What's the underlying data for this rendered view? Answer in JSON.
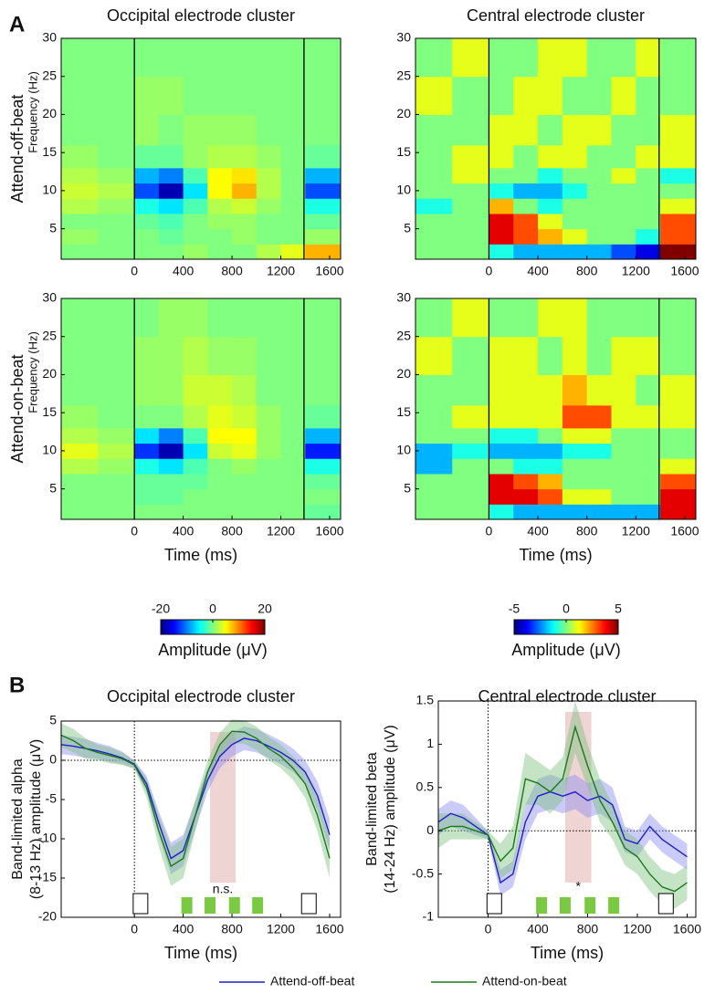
{
  "panel_labels": [
    "A",
    "B"
  ],
  "chart_data": [
    {
      "type": "heatmap",
      "title": "Occipital electrode cluster",
      "row_label": "Attend-off-beat",
      "y_label": "Frequency (Hz)",
      "x_edges": [
        -600,
        -300,
        0,
        200,
        400,
        600,
        800,
        1000,
        1200,
        1400,
        1690
      ],
      "y_edges": [
        1,
        3,
        5,
        7,
        9,
        11,
        13,
        16,
        20,
        25,
        30
      ],
      "values": [
        [
          0,
          0,
          0,
          0,
          1,
          0,
          0,
          2,
          4,
          8
        ],
        [
          1,
          0,
          0,
          -1,
          0,
          0,
          1,
          0,
          0,
          1
        ],
        [
          0,
          0,
          -1,
          -2,
          0,
          1,
          1,
          0,
          0,
          -1
        ],
        [
          2,
          1,
          -4,
          -6,
          -2,
          2,
          3,
          1,
          0,
          -4
        ],
        [
          3,
          2,
          -12,
          -18,
          -6,
          5,
          8,
          2,
          0,
          -12
        ],
        [
          2,
          1,
          -8,
          -10,
          -2,
          5,
          6,
          2,
          0,
          -8
        ],
        [
          1,
          0,
          -1,
          -1,
          1,
          2,
          2,
          1,
          0,
          -1
        ],
        [
          0,
          0,
          1,
          0,
          1,
          1,
          1,
          0,
          0,
          0
        ],
        [
          0,
          0,
          1,
          1,
          0,
          0,
          0,
          0,
          0,
          0
        ],
        [
          0,
          0,
          0,
          0,
          0,
          0,
          0,
          0,
          0,
          0
        ]
      ],
      "zlim": [
        -20,
        20
      ],
      "xlim": [
        -600,
        1690
      ],
      "ylim": [
        1,
        30
      ],
      "xticks": [
        0,
        400,
        800,
        1200,
        1600
      ],
      "yticks": [
        5,
        10,
        15,
        20,
        25,
        30
      ],
      "event_lines": [
        0,
        1390
      ]
    },
    {
      "type": "heatmap",
      "title": "Central electrode cluster",
      "x_edges": [
        -600,
        -300,
        0,
        200,
        400,
        600,
        800,
        1000,
        1200,
        1400,
        1690
      ],
      "y_edges": [
        1,
        3,
        5,
        7,
        9,
        11,
        13,
        16,
        20,
        25,
        30
      ],
      "values": [
        [
          0,
          0,
          -1,
          -2,
          -2,
          -2,
          -2,
          -3,
          -4,
          5
        ],
        [
          0,
          0,
          4,
          3,
          2,
          1,
          0,
          0,
          -1,
          3
        ],
        [
          0,
          0,
          4,
          3,
          1,
          0,
          0,
          0,
          0,
          3
        ],
        [
          -1,
          0,
          2,
          0,
          -1,
          0,
          0,
          0,
          0,
          1
        ],
        [
          0,
          0,
          -1,
          -2,
          -2,
          -1,
          0,
          0,
          0,
          0
        ],
        [
          0,
          1,
          0,
          0,
          -1,
          0,
          0,
          1,
          0,
          -1
        ],
        [
          0,
          1,
          1,
          0,
          1,
          1,
          0,
          0,
          1,
          1
        ],
        [
          0,
          0,
          1,
          1,
          0,
          1,
          1,
          0,
          0,
          1
        ],
        [
          1,
          0,
          0,
          1,
          1,
          0,
          0,
          1,
          0,
          0
        ],
        [
          0,
          1,
          0,
          0,
          1,
          1,
          0,
          0,
          1,
          0
        ]
      ],
      "zlim": [
        -5,
        5
      ],
      "xlim": [
        -600,
        1690
      ],
      "ylim": [
        1,
        30
      ],
      "xticks": [
        0,
        400,
        800,
        1200,
        1600
      ],
      "yticks": [
        5,
        10,
        15,
        20,
        25,
        30
      ],
      "event_lines": [
        0,
        1390
      ]
    },
    {
      "type": "heatmap",
      "row_label": "Attend-on-beat",
      "y_label": "Frequency (Hz)",
      "x_label": "Time (ms)",
      "x_edges": [
        -600,
        -300,
        0,
        200,
        400,
        600,
        800,
        1000,
        1200,
        1400,
        1690
      ],
      "y_edges": [
        1,
        3,
        5,
        7,
        9,
        11,
        13,
        16,
        20,
        25,
        30
      ],
      "values": [
        [
          0,
          0,
          0,
          0,
          0,
          0,
          0,
          0,
          0,
          -1
        ],
        [
          0,
          0,
          -1,
          -1,
          0,
          0,
          0,
          0,
          0,
          0
        ],
        [
          0,
          0,
          -1,
          -1,
          -1,
          0,
          0,
          0,
          0,
          -1
        ],
        [
          2,
          1,
          -4,
          -6,
          -2,
          0,
          1,
          0,
          0,
          -4
        ],
        [
          4,
          2,
          -13,
          -18,
          -6,
          3,
          4,
          1,
          0,
          -14
        ],
        [
          2,
          1,
          -6,
          -10,
          -2,
          5,
          5,
          1,
          0,
          -8
        ],
        [
          1,
          0,
          0,
          0,
          2,
          4,
          3,
          1,
          0,
          -1
        ],
        [
          0,
          0,
          1,
          1,
          3,
          3,
          2,
          0,
          0,
          0
        ],
        [
          0,
          0,
          1,
          1,
          2,
          1,
          1,
          0,
          0,
          0
        ],
        [
          0,
          0,
          0,
          1,
          1,
          0,
          0,
          0,
          0,
          0
        ]
      ],
      "zlim": [
        -20,
        20
      ],
      "colorbar": {
        "ticks": [
          -20,
          0,
          20
        ],
        "label": "Amplitude (μV)"
      },
      "xlim": [
        -600,
        1690
      ],
      "ylim": [
        1,
        30
      ],
      "xticks": [
        0,
        400,
        800,
        1200,
        1600
      ],
      "yticks": [
        5,
        10,
        15,
        20,
        25,
        30
      ],
      "event_lines": [
        0,
        1390
      ]
    },
    {
      "type": "heatmap",
      "x_label": "Time (ms)",
      "x_edges": [
        -600,
        -300,
        0,
        200,
        400,
        600,
        800,
        1000,
        1200,
        1400,
        1690
      ],
      "y_edges": [
        1,
        3,
        5,
        7,
        9,
        11,
        13,
        16,
        20,
        25,
        30
      ],
      "values": [
        [
          0,
          0,
          -1,
          -2,
          -2,
          -2,
          -2,
          -2,
          -2,
          4
        ],
        [
          0,
          0,
          4,
          4,
          3,
          1,
          1,
          0,
          0,
          4
        ],
        [
          0,
          0,
          4,
          3,
          2,
          0,
          0,
          0,
          0,
          3
        ],
        [
          -2,
          0,
          0,
          -1,
          -1,
          0,
          0,
          0,
          0,
          1
        ],
        [
          -2,
          -1,
          -2,
          -2,
          -2,
          -1,
          -1,
          0,
          0,
          0
        ],
        [
          0,
          0,
          -1,
          -1,
          0,
          1,
          1,
          0,
          0,
          0
        ],
        [
          0,
          1,
          1,
          1,
          1,
          3,
          3,
          1,
          1,
          1
        ],
        [
          0,
          0,
          1,
          1,
          1,
          2,
          1,
          1,
          0,
          1
        ],
        [
          1,
          0,
          1,
          1,
          0,
          1,
          0,
          1,
          1,
          0
        ],
        [
          0,
          1,
          0,
          0,
          1,
          1,
          0,
          0,
          0,
          0
        ]
      ],
      "zlim": [
        -5,
        5
      ],
      "colorbar": {
        "ticks": [
          -5,
          0,
          5
        ],
        "label": "Amplitude (μV)"
      },
      "xlim": [
        -600,
        1690
      ],
      "ylim": [
        1,
        30
      ],
      "xticks": [
        0,
        400,
        800,
        1200,
        1600
      ],
      "yticks": [
        5,
        10,
        15,
        20,
        25,
        30
      ],
      "event_lines": [
        0,
        1390
      ]
    },
    {
      "type": "line",
      "title": "Occipital electrode cluster",
      "y_label": [
        "Band-limited alpha",
        "(8-13 Hz) amplitude (μV)"
      ],
      "x_label": "Time (ms)",
      "x": [
        -600,
        -500,
        -400,
        -300,
        -200,
        -100,
        0,
        100,
        200,
        300,
        400,
        500,
        600,
        700,
        800,
        900,
        1000,
        1100,
        1200,
        1300,
        1400,
        1500,
        1600
      ],
      "series": [
        {
          "name": "Attend-off-beat",
          "color": "#1f1fc8",
          "band_color": "#8c8cf0",
          "values": [
            2,
            1.8,
            1.5,
            1.2,
            0.8,
            0.3,
            -0.5,
            -3,
            -8,
            -12.5,
            -11.5,
            -7,
            -2.5,
            0.5,
            2,
            2.8,
            2.5,
            1.8,
            1,
            0,
            -1.5,
            -4.5,
            -9.5
          ],
          "errors": [
            1.2,
            1.2,
            1.2,
            1,
            1,
            0.8,
            0.5,
            1,
            1.5,
            2,
            2,
            1.8,
            1.5,
            1.5,
            1.5,
            1.5,
            1.5,
            1.5,
            1.5,
            1.5,
            1.5,
            1.8,
            2
          ]
        },
        {
          "name": "Attend-on-beat",
          "color": "#1a7a1a",
          "band_color": "#7fc07f",
          "values": [
            3.2,
            2.5,
            1.5,
            1,
            0.6,
            0.2,
            -0.6,
            -3.5,
            -9,
            -13.5,
            -12.5,
            -7,
            -1.5,
            2,
            3.7,
            3.6,
            2.8,
            1.5,
            0.5,
            -1,
            -3,
            -7,
            -12.5
          ],
          "errors": [
            1.5,
            1.5,
            1.3,
            1,
            1,
            0.8,
            0.5,
            1.2,
            2,
            2.5,
            2.5,
            2,
            1.5,
            1.5,
            1.5,
            1.5,
            1.5,
            1.5,
            1.5,
            1.5,
            1.8,
            2,
            2.5
          ]
        }
      ],
      "xlim": [
        -600,
        1690
      ],
      "ylim": [
        -20,
        5
      ],
      "xticks": [
        0,
        400,
        800,
        1200,
        1600
      ],
      "yticks": [
        5,
        0,
        -5,
        -10,
        -15,
        -20
      ],
      "highlight": [
        620,
        830
      ],
      "annotation": "n.s.",
      "annotation_y": -16.5,
      "cue_markers": [
        50,
        1430
      ],
      "tap_markers": [
        430,
        620,
        820,
        1010
      ]
    },
    {
      "type": "line",
      "title": "Central electrode cluster",
      "y_label": [
        "Band-limited beta",
        "(14-24 Hz) amplitude (μV)"
      ],
      "x_label": "Time (ms)",
      "x": [
        -400,
        -300,
        -200,
        -100,
        0,
        100,
        200,
        300,
        400,
        500,
        600,
        700,
        800,
        900,
        1000,
        1100,
        1200,
        1300,
        1400,
        1500,
        1600
      ],
      "series": [
        {
          "name": "Attend-off-beat",
          "color": "#1f1fc8",
          "band_color": "#8c8cf0",
          "values": [
            0.1,
            0.2,
            0.15,
            0.05,
            -0.05,
            -0.6,
            -0.5,
            0.1,
            0.4,
            0.45,
            0.4,
            0.45,
            0.35,
            0.4,
            0.3,
            -0.1,
            -0.15,
            0.05,
            -0.1,
            -0.2,
            -0.3
          ],
          "errors": [
            0.15,
            0.15,
            0.15,
            0.1,
            0.05,
            0.15,
            0.15,
            0.2,
            0.2,
            0.2,
            0.2,
            0.2,
            0.2,
            0.2,
            0.2,
            0.15,
            0.15,
            0.15,
            0.15,
            0.15,
            0.15
          ]
        },
        {
          "name": "Attend-on-beat",
          "color": "#1a7a1a",
          "band_color": "#7fc07f",
          "values": [
            0,
            0.05,
            0.05,
            0,
            -0.05,
            -0.35,
            -0.2,
            0.6,
            0.55,
            0.45,
            0.6,
            1.2,
            0.75,
            0.35,
            0.1,
            -0.2,
            -0.3,
            -0.5,
            -0.65,
            -0.7,
            -0.6
          ],
          "errors": [
            0.2,
            0.15,
            0.15,
            0.1,
            0.05,
            0.2,
            0.25,
            0.3,
            0.25,
            0.25,
            0.25,
            0.3,
            0.25,
            0.25,
            0.2,
            0.2,
            0.2,
            0.2,
            0.2,
            0.2,
            0.2
          ]
        }
      ],
      "xlim": [
        -400,
        1670
      ],
      "ylim": [
        -1,
        1.5
      ],
      "xticks": [
        0,
        400,
        800,
        1200,
        1600
      ],
      "yticks": [
        -1,
        -0.5,
        0,
        0.5,
        1,
        1.5
      ],
      "highlight": [
        620,
        830
      ],
      "annotation": "*",
      "annotation_y": -0.65,
      "cue_markers": [
        50,
        1430
      ],
      "tap_markers": [
        430,
        620,
        820,
        1010
      ]
    }
  ]
}
